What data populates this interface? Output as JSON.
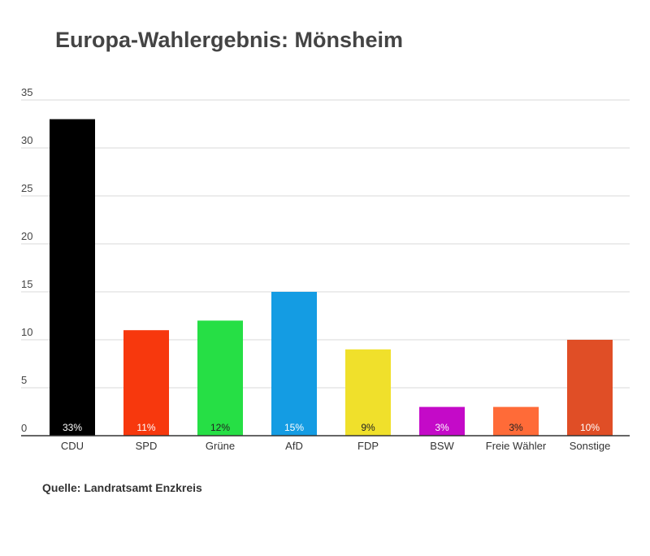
{
  "chart_data": {
    "type": "bar",
    "title": "Europa-Wahlergebnis: Mönsheim",
    "xlabel": "",
    "ylabel": "",
    "ylim": [
      0,
      35
    ],
    "yticks": [
      "0",
      "5",
      "10",
      "15",
      "20",
      "25",
      "30",
      "35"
    ],
    "grid": true,
    "categories": [
      "CDU",
      "SPD",
      "Grüne",
      "AfD",
      "FDP",
      "BSW",
      "Freie Wähler",
      "Sonstige"
    ],
    "values": [
      33,
      11,
      12,
      15,
      9,
      3,
      3,
      10
    ],
    "data_labels": [
      "33%",
      "11%",
      "12%",
      "15%",
      "9%",
      "3%",
      "3%",
      "10%"
    ],
    "colors": [
      "#000000",
      "#f7380d",
      "#26df45",
      "#149ce3",
      "#f0e02b",
      "#c40ac8",
      "#ff6b38",
      "#e04e26"
    ],
    "label_colors": [
      "#ffffff",
      "#ffffff",
      "#222222",
      "#ffffff",
      "#222222",
      "#ffffff",
      "#222222",
      "#ffffff"
    ]
  },
  "source": "Quelle: Landratsamt Enzkreis"
}
